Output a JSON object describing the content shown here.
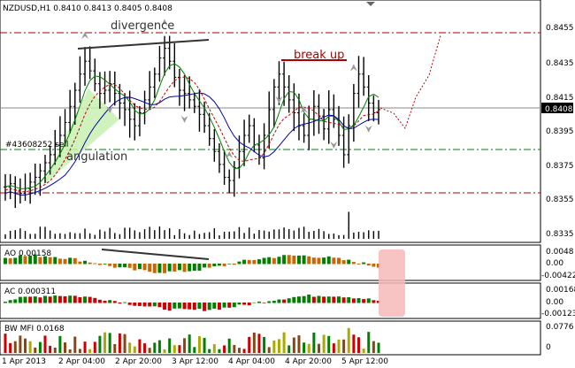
{
  "chart": {
    "symbol_header": "NZDUSD,H1  0.8410 0.8413 0.8405 0.8408",
    "current_price_label": "0.8408",
    "object_label": "#43608252 sell",
    "annotations": {
      "divergence": "divergence",
      "break_up": "break up",
      "angulation": "angulation"
    },
    "price_axis_labels": [
      "0.8455",
      "0.8435",
      "0.8415",
      "0.8395",
      "0.8375",
      "0.8355",
      "0.8335"
    ],
    "time_axis_labels": [
      "1 Apr 2013",
      "2 Apr 04:00",
      "2 Apr 20:00",
      "3 Apr 12:00",
      "4 Apr 04:00",
      "4 Apr 20:00",
      "5 Apr 12:00"
    ],
    "colors": {
      "bars": "#000000",
      "ma_red": "#cc0000",
      "ma_green": "#008000",
      "ma_blue": "#0000aa",
      "level_red": "#aa0000",
      "level_green": "#008000",
      "angulation_fill": "#c8f0b0",
      "ao_up": "#008000",
      "ao_down": "#cc6600",
      "ac_up": "#008000",
      "ac_down": "#cc0000",
      "highlight": "#f6b8b8"
    }
  },
  "indicators": {
    "ao": {
      "label": "AO 0.00158",
      "axis_labels": [
        "0.0048",
        "0.00",
        "-0.00422"
      ]
    },
    "ac": {
      "label": "AC 0.000311",
      "axis_labels": [
        "0.00168",
        "0.00",
        "-0.00123"
      ]
    },
    "mfi": {
      "label": "BW MFI 0.0168",
      "axis_labels": [
        "0.0776",
        "0"
      ]
    }
  },
  "chart_data": {
    "type": "ohlc",
    "symbol": "NZDUSD",
    "timeframe": "H1",
    "last_quote": {
      "open": 0.841,
      "high": 0.8413,
      "low": 0.8405,
      "close": 0.8408
    },
    "close_series": [
      0.836,
      0.8362,
      0.8358,
      0.8356,
      0.8359,
      0.8363,
      0.8366,
      0.837,
      0.8375,
      0.838,
      0.8386,
      0.8392,
      0.84,
      0.841,
      0.842,
      0.843,
      0.8438,
      0.8432,
      0.8424,
      0.8418,
      0.842,
      0.8424,
      0.8418,
      0.8412,
      0.8408,
      0.8402,
      0.8398,
      0.8406,
      0.8414,
      0.8422,
      0.843,
      0.844,
      0.8446,
      0.8438,
      0.8428,
      0.842,
      0.8418,
      0.8414,
      0.841,
      0.8405,
      0.8398,
      0.839,
      0.8382,
      0.8374,
      0.8366,
      0.8364,
      0.8372,
      0.8382,
      0.8392,
      0.8398,
      0.8386,
      0.8378,
      0.8392,
      0.8408,
      0.8422,
      0.843,
      0.8422,
      0.8414,
      0.8406,
      0.8398,
      0.8392,
      0.8402,
      0.841,
      0.8404,
      0.8396,
      0.8408,
      0.8402,
      0.8392,
      0.838,
      0.8398,
      0.8418,
      0.843,
      0.8422,
      0.8412,
      0.8406,
      0.8408
    ],
    "ylim": [
      0.833,
      0.8465
    ],
    "levels": [
      0.8452,
      0.8385,
      0.836
    ]
  }
}
